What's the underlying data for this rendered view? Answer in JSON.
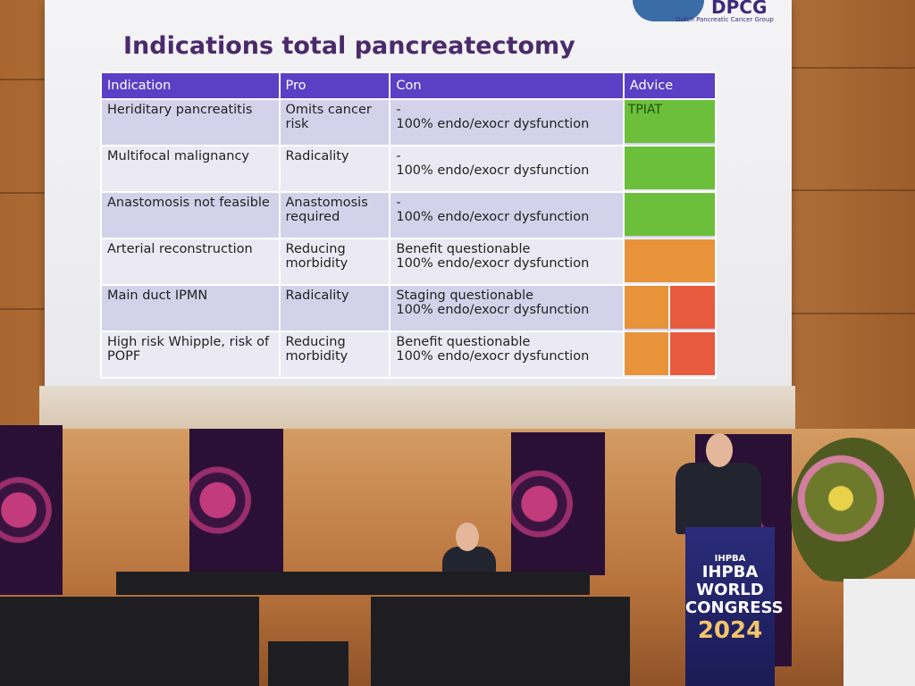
{
  "slide": {
    "title": "Indications total pancreatectomy",
    "logo": {
      "name": "DPCG",
      "subtitle": "Dutch Pancreatic Cancer Group"
    },
    "table": {
      "header": [
        "Indication",
        "Pro",
        "Con",
        "Advice"
      ],
      "rows": [
        {
          "indication": "Heriditary pancreatitis",
          "pro": "Omits cancer risk",
          "con": [
            "-",
            "100% endo/exocr dysfunction"
          ],
          "advice": "TPIAT"
        },
        {
          "indication": "Multifocal malignancy",
          "pro": "Radicality",
          "con": [
            "-",
            "100% endo/exocr dysfunction"
          ]
        },
        {
          "indication": "Anastomosis not feasible",
          "pro": "Anastomosis required",
          "con": [
            "-",
            "100% endo/exocr dysfunction"
          ]
        },
        {
          "indication": "Arterial reconstruction",
          "pro": "Reducing morbidity",
          "con": [
            "Benefit questionable",
            "100% endo/exocr dysfunction"
          ]
        },
        {
          "indication": "Main duct IPMN",
          "pro": "Radicality",
          "con": [
            "Staging questionable",
            "100% endo/exocr dysfunction"
          ]
        },
        {
          "indication": "High risk Whipple, risk of POPF",
          "pro": "Reducing morbidity",
          "con": [
            "Benefit questionable",
            "100% endo/exocr dysfunction"
          ]
        }
      ]
    }
  },
  "podium": {
    "logo": "IHPBA",
    "lines": [
      "IHPBA",
      "WORLD",
      "CONGRESS"
    ],
    "year": "2024"
  }
}
